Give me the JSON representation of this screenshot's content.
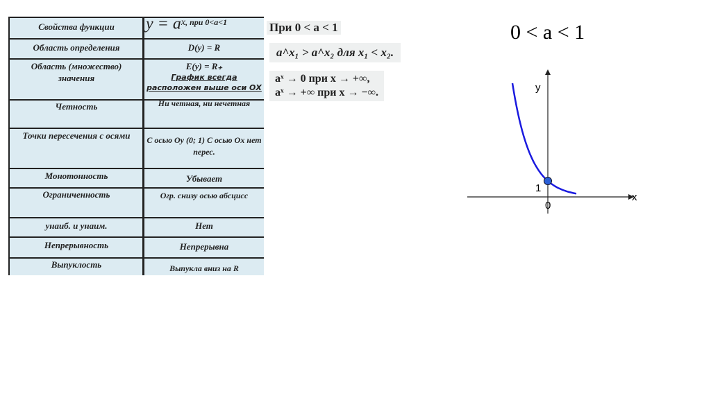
{
  "table": {
    "header": {
      "left": "Свойства функции",
      "formula": "y = a",
      "exp": "x",
      "cond": ", при 0<a<1"
    },
    "rows": [
      {
        "left": "Область определения",
        "right": "D(y) = R"
      },
      {
        "left": "Область (множество) значения",
        "right": "E(y) = R₊",
        "note": "График всегда расположен выше оси ОХ"
      },
      {
        "left": "Четность",
        "right": "Ни четная, ни нечетная"
      },
      {
        "left": "Точки пересечения с осями",
        "right": "С осью Оу (0; 1) С осью Ох нет перес."
      },
      {
        "left": "Монотонность",
        "right": "Убывает"
      },
      {
        "left": "Ограниченность",
        "right": "Огр. снизу осью абсцисс"
      },
      {
        "left": "унаиб.  и унаим.",
        "right": "Нет"
      },
      {
        "left": "Непрерывность",
        "right": "Непрерывна"
      },
      {
        "left": "Выпуклость",
        "right": "Выпукла вниз на R"
      }
    ]
  },
  "formulas": {
    "f1": "При 0 < a < 1",
    "f2": "a^x₁ > a^x₂   для  x₁ < x₂.",
    "f3": "aˣ → 0  при  x → +∞,",
    "f4": "aˣ → +∞  при  x → −∞."
  },
  "graph": {
    "title": "0 < a < 1",
    "y_label": "y",
    "x_label": "x",
    "one": "1",
    "zero": "0",
    "curve_color": "#1a1adf",
    "point_color": "#2a5fd8"
  }
}
